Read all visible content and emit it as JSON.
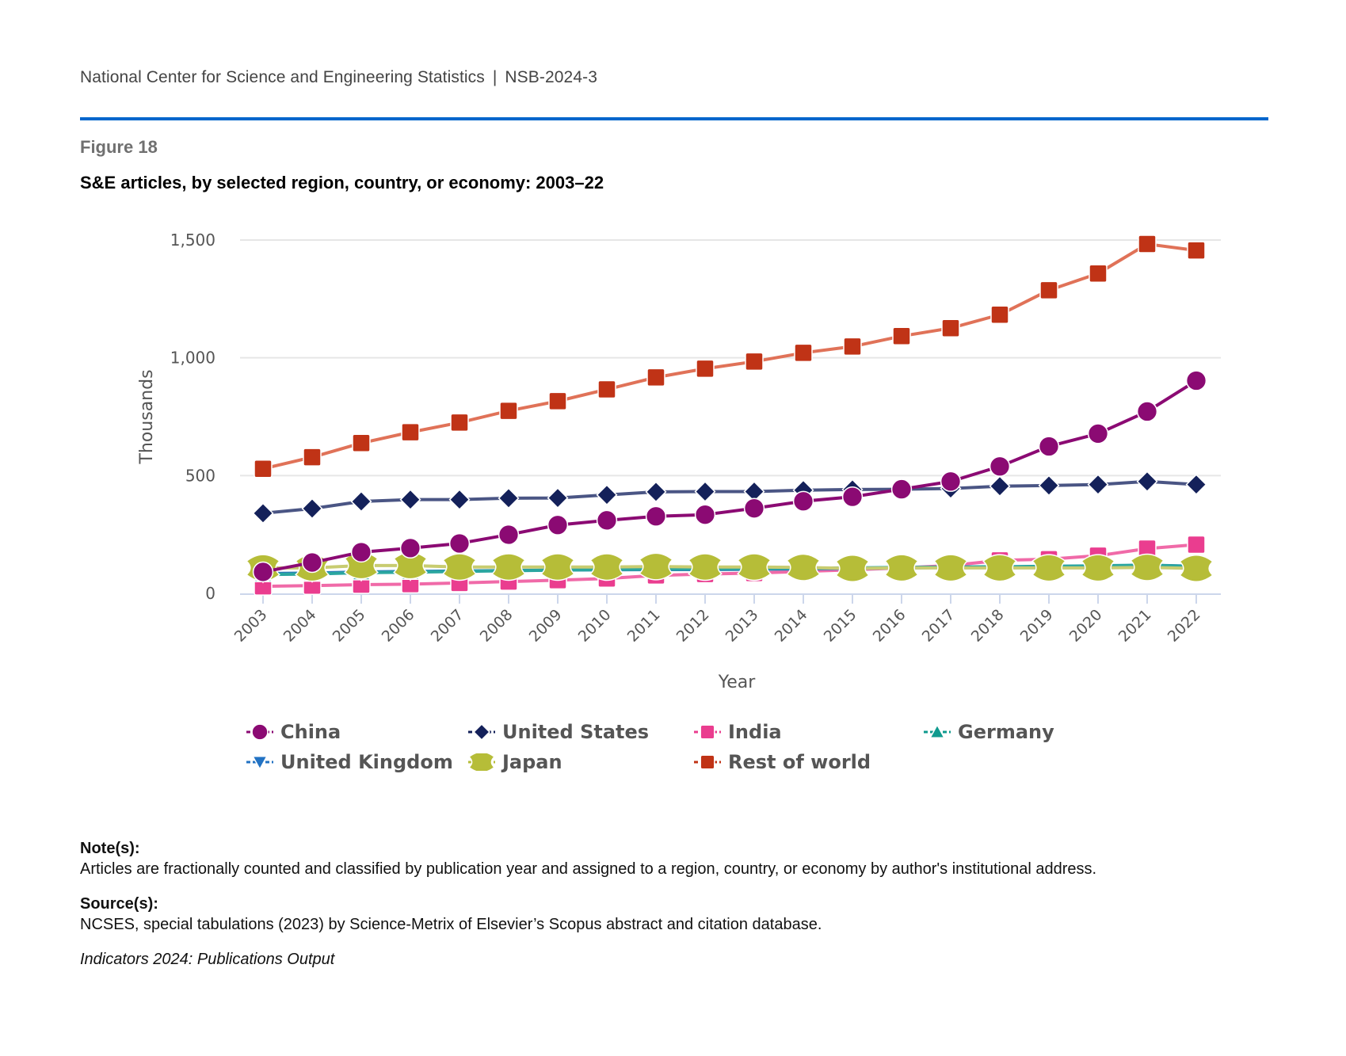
{
  "header": {
    "organization": "National Center for Science and Engineering Statistics",
    "separator": "|",
    "report_id": "NSB-2024-3"
  },
  "figure": {
    "label": "Figure 18",
    "title": "S&E articles, by selected region, country, or economy: 2003–22"
  },
  "colors": {
    "rule": "#0066cc",
    "gridline": "#e6e6e6",
    "axis": "#ccd6eb"
  },
  "chart_data": {
    "type": "line",
    "title": "S&E articles, by selected region, country, or economy: 2003–22",
    "xlabel": "Year",
    "ylabel": "Thousands",
    "ylim": [
      0,
      1500
    ],
    "yticks": [
      0,
      500,
      1000,
      1500
    ],
    "ytick_labels": [
      "0",
      "500",
      "1,000",
      "1,500"
    ],
    "grid": true,
    "legend_position": "bottom",
    "x": [
      "2003",
      "2004",
      "2005",
      "2006",
      "2007",
      "2008",
      "2009",
      "2010",
      "2011",
      "2012",
      "2013",
      "2014",
      "2015",
      "2016",
      "2017",
      "2018",
      "2019",
      "2020",
      "2021",
      "2022"
    ],
    "series": [
      {
        "name": "China",
        "marker": "circle",
        "color": "#8b0a73",
        "line_color": "#8b0a73",
        "values": [
          91,
          131,
          175,
          192,
          212,
          249,
          290,
          310,
          327,
          334,
          361,
          391,
          410,
          442,
          475,
          539,
          624,
          678,
          772,
          903
        ]
      },
      {
        "name": "United States",
        "marker": "diamond",
        "color": "#14215a",
        "line_color": "#4a5584",
        "values": [
          340,
          360,
          390,
          398,
          398,
          404,
          405,
          418,
          431,
          432,
          432,
          438,
          441,
          442,
          445,
          455,
          458,
          462,
          475,
          462
        ]
      },
      {
        "name": "India",
        "marker": "square",
        "color": "#ea3d8f",
        "line_color": "#f06aa8",
        "values": [
          30,
          33,
          37,
          39,
          44,
          50,
          56,
          63,
          76,
          82,
          86,
          93,
          100,
          108,
          118,
          140,
          145,
          160,
          190,
          207
        ]
      },
      {
        "name": "Germany",
        "marker": "triangle-up",
        "color": "#0f9a8e",
        "line_color": "#2aa6a0",
        "values": [
          80,
          82,
          88,
          90,
          93,
          96,
          99,
          101,
          103,
          104,
          105,
          107,
          108,
          110,
          112,
          113,
          115,
          117,
          120,
          114
        ]
      },
      {
        "name": "United Kingdom",
        "marker": "triangle-down",
        "color": "#2272c3",
        "line_color": "#2a7ab8",
        "values": [
          84,
          86,
          91,
          93,
          95,
          97,
          99,
          100,
          101,
          101,
          102,
          104,
          106,
          108,
          110,
          112,
          114,
          115,
          120,
          115
        ]
      },
      {
        "name": "Japan",
        "marker": "ellipse",
        "color": "#b6bd38",
        "line_color": "#c8cc70",
        "values": [
          108,
          108,
          118,
          118,
          112,
          112,
          112,
          112,
          114,
          112,
          112,
          110,
          106,
          108,
          108,
          108,
          108,
          108,
          110,
          106
        ]
      },
      {
        "name": "Rest of world",
        "marker": "square",
        "color": "#c03316",
        "line_color": "#e07258",
        "values": [
          529,
          578,
          638,
          684,
          725,
          775,
          816,
          866,
          917,
          954,
          984,
          1021,
          1048,
          1092,
          1126,
          1183,
          1287,
          1358,
          1483,
          1456
        ]
      }
    ]
  },
  "notes": {
    "note_heading": "Note(s):",
    "note_text": "Articles are fractionally counted and classified by publication year and assigned to a region, country, or economy by author's institutional address.",
    "source_heading": "Source(s):",
    "source_text": "NCSES, special tabulations (2023) by Science-Metrix of Elsevier’s Scopus abstract and citation database.",
    "citation": "Indicators 2024: Publications Output"
  }
}
